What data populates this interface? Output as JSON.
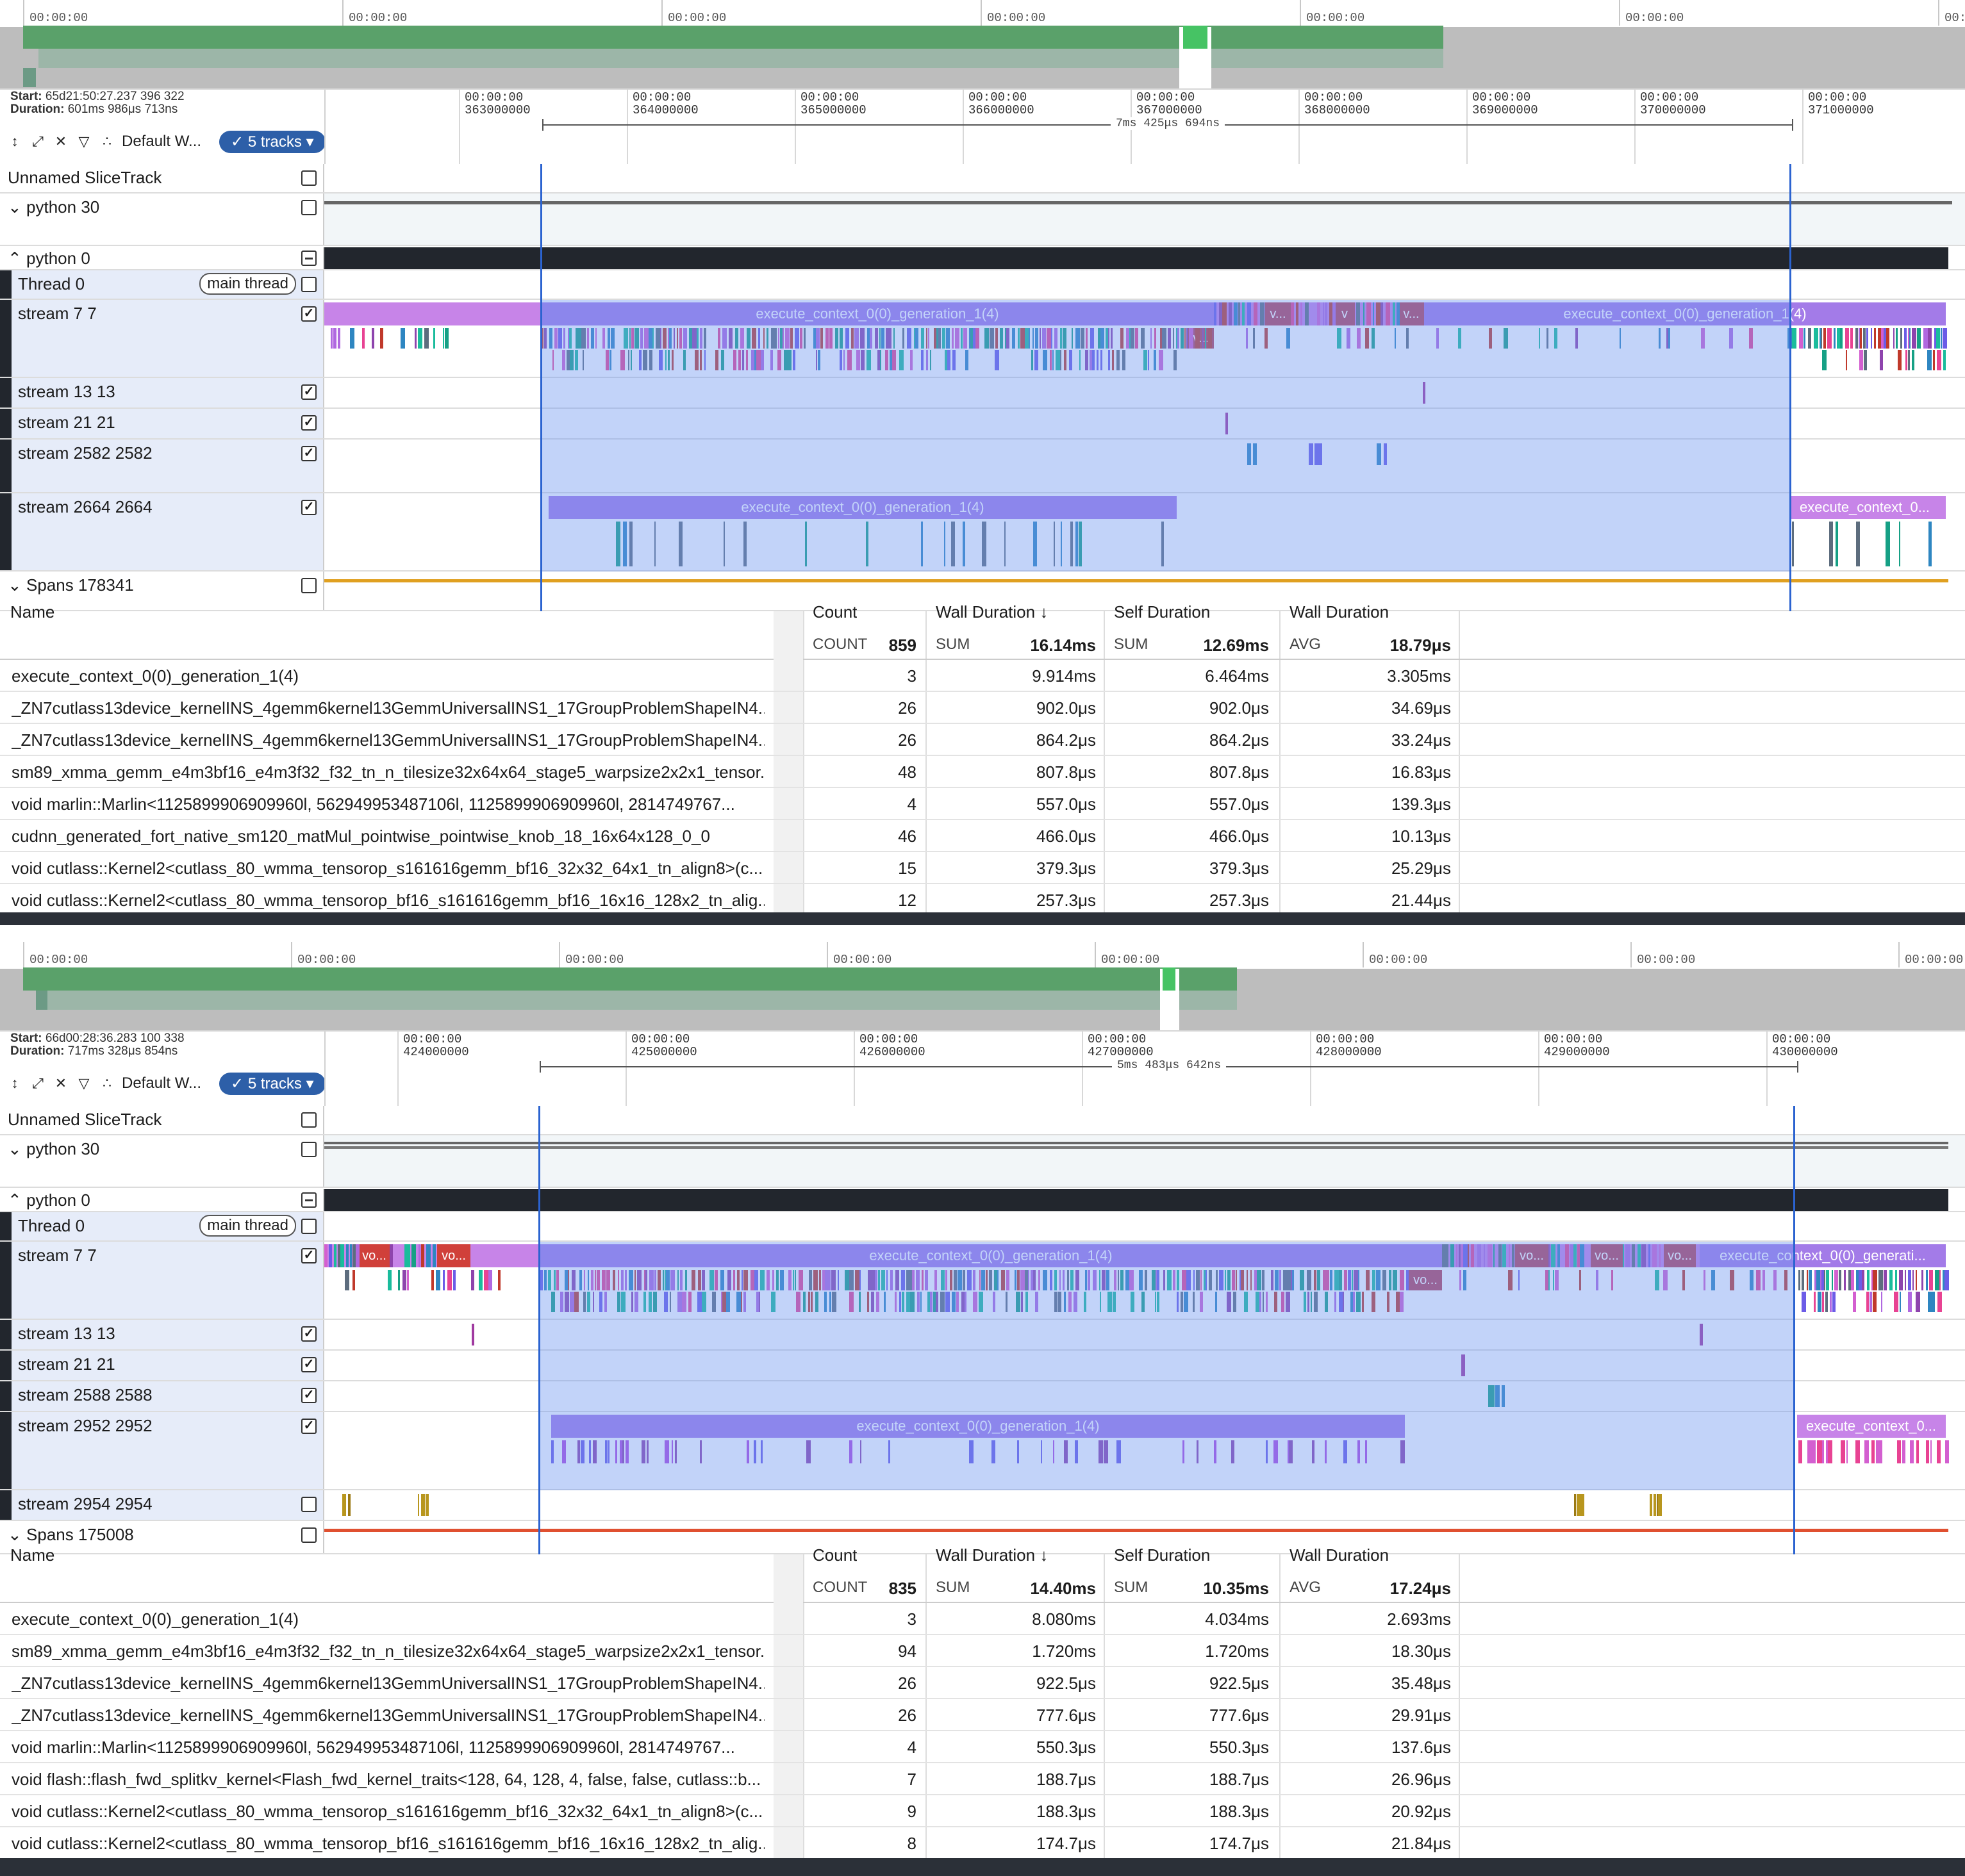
{
  "panels": [
    {
      "overview": {
        "tick_label": "00:00:00",
        "ticks": [
          "00:00:00",
          "00:00:00",
          "00:00:00",
          "00:00:00",
          "00:00:00",
          "00:00:00",
          "00:00:00"
        ]
      },
      "info": {
        "start_label": "Start:",
        "start_value": "65d21:50:27.237 396 322",
        "duration_label": "Duration:",
        "duration_value": "601ms 986μs 713ns"
      },
      "toolbar": {
        "workspace": "Default W...",
        "tracks_chip": "5 tracks"
      },
      "ruler": {
        "ticks": [
          {
            "top": "00:00:00",
            "bottom": "363000000"
          },
          {
            "top": "00:00:00",
            "bottom": "364000000"
          },
          {
            "top": "00:00:00",
            "bottom": "365000000"
          },
          {
            "top": "00:00:00",
            "bottom": "366000000"
          },
          {
            "top": "00:00:00",
            "bottom": "367000000"
          },
          {
            "top": "00:00:00",
            "bottom": "368000000"
          },
          {
            "top": "00:00:00",
            "bottom": "369000000"
          },
          {
            "top": "00:00:00",
            "bottom": "370000000"
          },
          {
            "top": "00:00:00",
            "bottom": "371000000"
          }
        ],
        "measurement": "7ms 425μs 694ns"
      },
      "tracks": [
        {
          "name": "Unnamed SliceTrack",
          "type": "top"
        },
        {
          "name": "python 30",
          "type": "collapsed"
        },
        {
          "name": "python 0",
          "type": "group"
        },
        {
          "name": "Thread 0",
          "type": "child",
          "pill": "main thread"
        },
        {
          "name": "stream 7 7",
          "type": "child"
        },
        {
          "name": "stream 13 13",
          "type": "child"
        },
        {
          "name": "stream 21 21",
          "type": "child"
        },
        {
          "name": "stream 2582 2582",
          "type": "child"
        },
        {
          "name": "stream 2664 2664",
          "type": "child"
        },
        {
          "name": "Spans 178341",
          "type": "collapsed"
        }
      ],
      "slices": {
        "s7_a": "execute_context_0(0)_generation_1(4)",
        "s7_b": "execute_context_0(0)_generation_1(4)",
        "s7_v1": "v...",
        "s7_v2": "v",
        "s7_v3": "v...",
        "s7_v4": "v...",
        "s2664_a": "execute_context_0(0)_generation_1(4)",
        "s2664_b": "execute_context_0..."
      },
      "table": {
        "headers": {
          "name": "Name",
          "count": "Count",
          "wall": "Wall Duration",
          "self": "Self Duration",
          "avg_hdr": "Wall Duration"
        },
        "summary": {
          "count_label": "COUNT",
          "count": "859",
          "sum_label": "SUM",
          "wall_sum": "16.14ms",
          "self_label": "SUM",
          "self_sum": "12.69ms",
          "avg_label": "AVG",
          "avg": "18.79μs"
        },
        "rows": [
          {
            "name": "execute_context_0(0)_generation_1(4)",
            "count": "3",
            "wall": "9.914ms",
            "self": "6.464ms",
            "avg": "3.305ms"
          },
          {
            "name": "_ZN7cutlass13device_kernelINS_4gemm6kernel13GemmUniversalINS1_17GroupProblemShapeIN4...",
            "count": "26",
            "wall": "902.0μs",
            "self": "902.0μs",
            "avg": "34.69μs"
          },
          {
            "name": "_ZN7cutlass13device_kernelINS_4gemm6kernel13GemmUniversalINS1_17GroupProblemShapeIN4...",
            "count": "26",
            "wall": "864.2μs",
            "self": "864.2μs",
            "avg": "33.24μs"
          },
          {
            "name": "sm89_xmma_gemm_e4m3bf16_e4m3f32_f32_tn_n_tilesize32x64x64_stage5_warpsize2x2x1_tensor...",
            "count": "48",
            "wall": "807.8μs",
            "self": "807.8μs",
            "avg": "16.83μs"
          },
          {
            "name": "void marlin::Marlin<1125899906909960l, 562949953487106l, 1125899906909960l, 2814749767...",
            "count": "4",
            "wall": "557.0μs",
            "self": "557.0μs",
            "avg": "139.3μs"
          },
          {
            "name": "cudnn_generated_fort_native_sm120_matMul_pointwise_pointwise_knob_18_16x64x128_0_0",
            "count": "46",
            "wall": "466.0μs",
            "self": "466.0μs",
            "avg": "10.13μs"
          },
          {
            "name": "void cutlass::Kernel2<cutlass_80_wmma_tensorop_s161616gemm_bf16_32x32_64x1_tn_align8>(c...",
            "count": "15",
            "wall": "379.3μs",
            "self": "379.3μs",
            "avg": "25.29μs"
          },
          {
            "name": "void cutlass::Kernel2<cutlass_80_wmma_tensorop_bf16_s161616gemm_bf16_16x16_128x2_tn_alig...",
            "count": "12",
            "wall": "257.3μs",
            "self": "257.3μs",
            "avg": "21.44μs"
          }
        ]
      }
    },
    {
      "overview": {
        "tick_label": "00:00:00",
        "ticks": [
          "00:00:00",
          "00:00:00",
          "00:00:00",
          "00:00:00",
          "00:00:00",
          "00:00:00",
          "00:00:00",
          "00:00:00"
        ]
      },
      "info": {
        "start_label": "Start:",
        "start_value": "66d00:28:36.283 100 338",
        "duration_label": "Duration:",
        "duration_value": "717ms 328μs 854ns"
      },
      "toolbar": {
        "workspace": "Default W...",
        "tracks_chip": "5 tracks"
      },
      "ruler": {
        "ticks": [
          {
            "top": "00:00:00",
            "bottom": "424000000"
          },
          {
            "top": "00:00:00",
            "bottom": "425000000"
          },
          {
            "top": "00:00:00",
            "bottom": "426000000"
          },
          {
            "top": "00:00:00",
            "bottom": "427000000"
          },
          {
            "top": "00:00:00",
            "bottom": "428000000"
          },
          {
            "top": "00:00:00",
            "bottom": "429000000"
          },
          {
            "top": "00:00:00",
            "bottom": "430000000"
          }
        ],
        "measurement": "5ms 483μs 642ns"
      },
      "tracks": [
        {
          "name": "Unnamed SliceTrack",
          "type": "top"
        },
        {
          "name": "python 30",
          "type": "collapsed"
        },
        {
          "name": "python 0",
          "type": "group"
        },
        {
          "name": "Thread 0",
          "type": "child",
          "pill": "main thread"
        },
        {
          "name": "stream 7 7",
          "type": "child"
        },
        {
          "name": "stream 13 13",
          "type": "child"
        },
        {
          "name": "stream 21 21",
          "type": "child"
        },
        {
          "name": "stream 2588 2588",
          "type": "child"
        },
        {
          "name": "stream 2952 2952",
          "type": "child"
        },
        {
          "name": "stream 2954 2954",
          "type": "child"
        },
        {
          "name": "Spans 175008",
          "type": "collapsed"
        }
      ],
      "slices": {
        "s7_a": "execute_context_0(0)_generation_1(4)",
        "s7_b": "execute_context_0(0)_generati...",
        "s7_vo1": "vo...",
        "s7_vo2": "vo...",
        "s7_vo3": "vo...",
        "s7_vo4": "vo...",
        "s7_vo5": "vo...",
        "s7_vo6": "vo...",
        "s2952_a": "execute_context_0(0)_generation_1(4)",
        "s2952_b": "execute_context_0..."
      },
      "table": {
        "headers": {
          "name": "Name",
          "count": "Count",
          "wall": "Wall Duration",
          "self": "Self Duration",
          "avg_hdr": "Wall Duration"
        },
        "summary": {
          "count_label": "COUNT",
          "count": "835",
          "sum_label": "SUM",
          "wall_sum": "14.40ms",
          "self_label": "SUM",
          "self_sum": "10.35ms",
          "avg_label": "AVG",
          "avg": "17.24μs"
        },
        "rows": [
          {
            "name": "execute_context_0(0)_generation_1(4)",
            "count": "3",
            "wall": "8.080ms",
            "self": "4.034ms",
            "avg": "2.693ms"
          },
          {
            "name": "sm89_xmma_gemm_e4m3bf16_e4m3f32_f32_tn_n_tilesize32x64x64_stage5_warpsize2x2x1_tensor...",
            "count": "94",
            "wall": "1.720ms",
            "self": "1.720ms",
            "avg": "18.30μs"
          },
          {
            "name": "_ZN7cutlass13device_kernelINS_4gemm6kernel13GemmUniversalINS1_17GroupProblemShapeIN4...",
            "count": "26",
            "wall": "922.5μs",
            "self": "922.5μs",
            "avg": "35.48μs"
          },
          {
            "name": "_ZN7cutlass13device_kernelINS_4gemm6kernel13GemmUniversalINS1_17GroupProblemShapeIN4...",
            "count": "26",
            "wall": "777.6μs",
            "self": "777.6μs",
            "avg": "29.91μs"
          },
          {
            "name": "void marlin::Marlin<1125899906909960l, 562949953487106l, 1125899906909960l, 2814749767...",
            "count": "4",
            "wall": "550.3μs",
            "self": "550.3μs",
            "avg": "137.6μs"
          },
          {
            "name": "void flash::flash_fwd_splitkv_kernel<Flash_fwd_kernel_traits<128, 64, 128, 4, false, false, cutlass::b...",
            "count": "7",
            "wall": "188.7μs",
            "self": "188.7μs",
            "avg": "26.96μs"
          },
          {
            "name": "void cutlass::Kernel2<cutlass_80_wmma_tensorop_s161616gemm_bf16_32x32_64x1_tn_align8>(c...",
            "count": "9",
            "wall": "188.3μs",
            "self": "188.3μs",
            "avg": "20.92μs"
          },
          {
            "name": "void cutlass::Kernel2<cutlass_80_wmma_tensorop_bf16_s161616gemm_bf16_16x16_128x2_tn_alig...",
            "count": "8",
            "wall": "174.7μs",
            "self": "174.7μs",
            "avg": "21.84μs"
          }
        ]
      }
    }
  ],
  "colors": {
    "accent": "#2d5fa8",
    "selection": "#6e96f0",
    "slice_purple": "#a37be8",
    "slice_lilac": "#c784e8",
    "span_line_1": "#e0a020",
    "span_line_2": "#e05030",
    "overview_green": "#5aa16a"
  }
}
